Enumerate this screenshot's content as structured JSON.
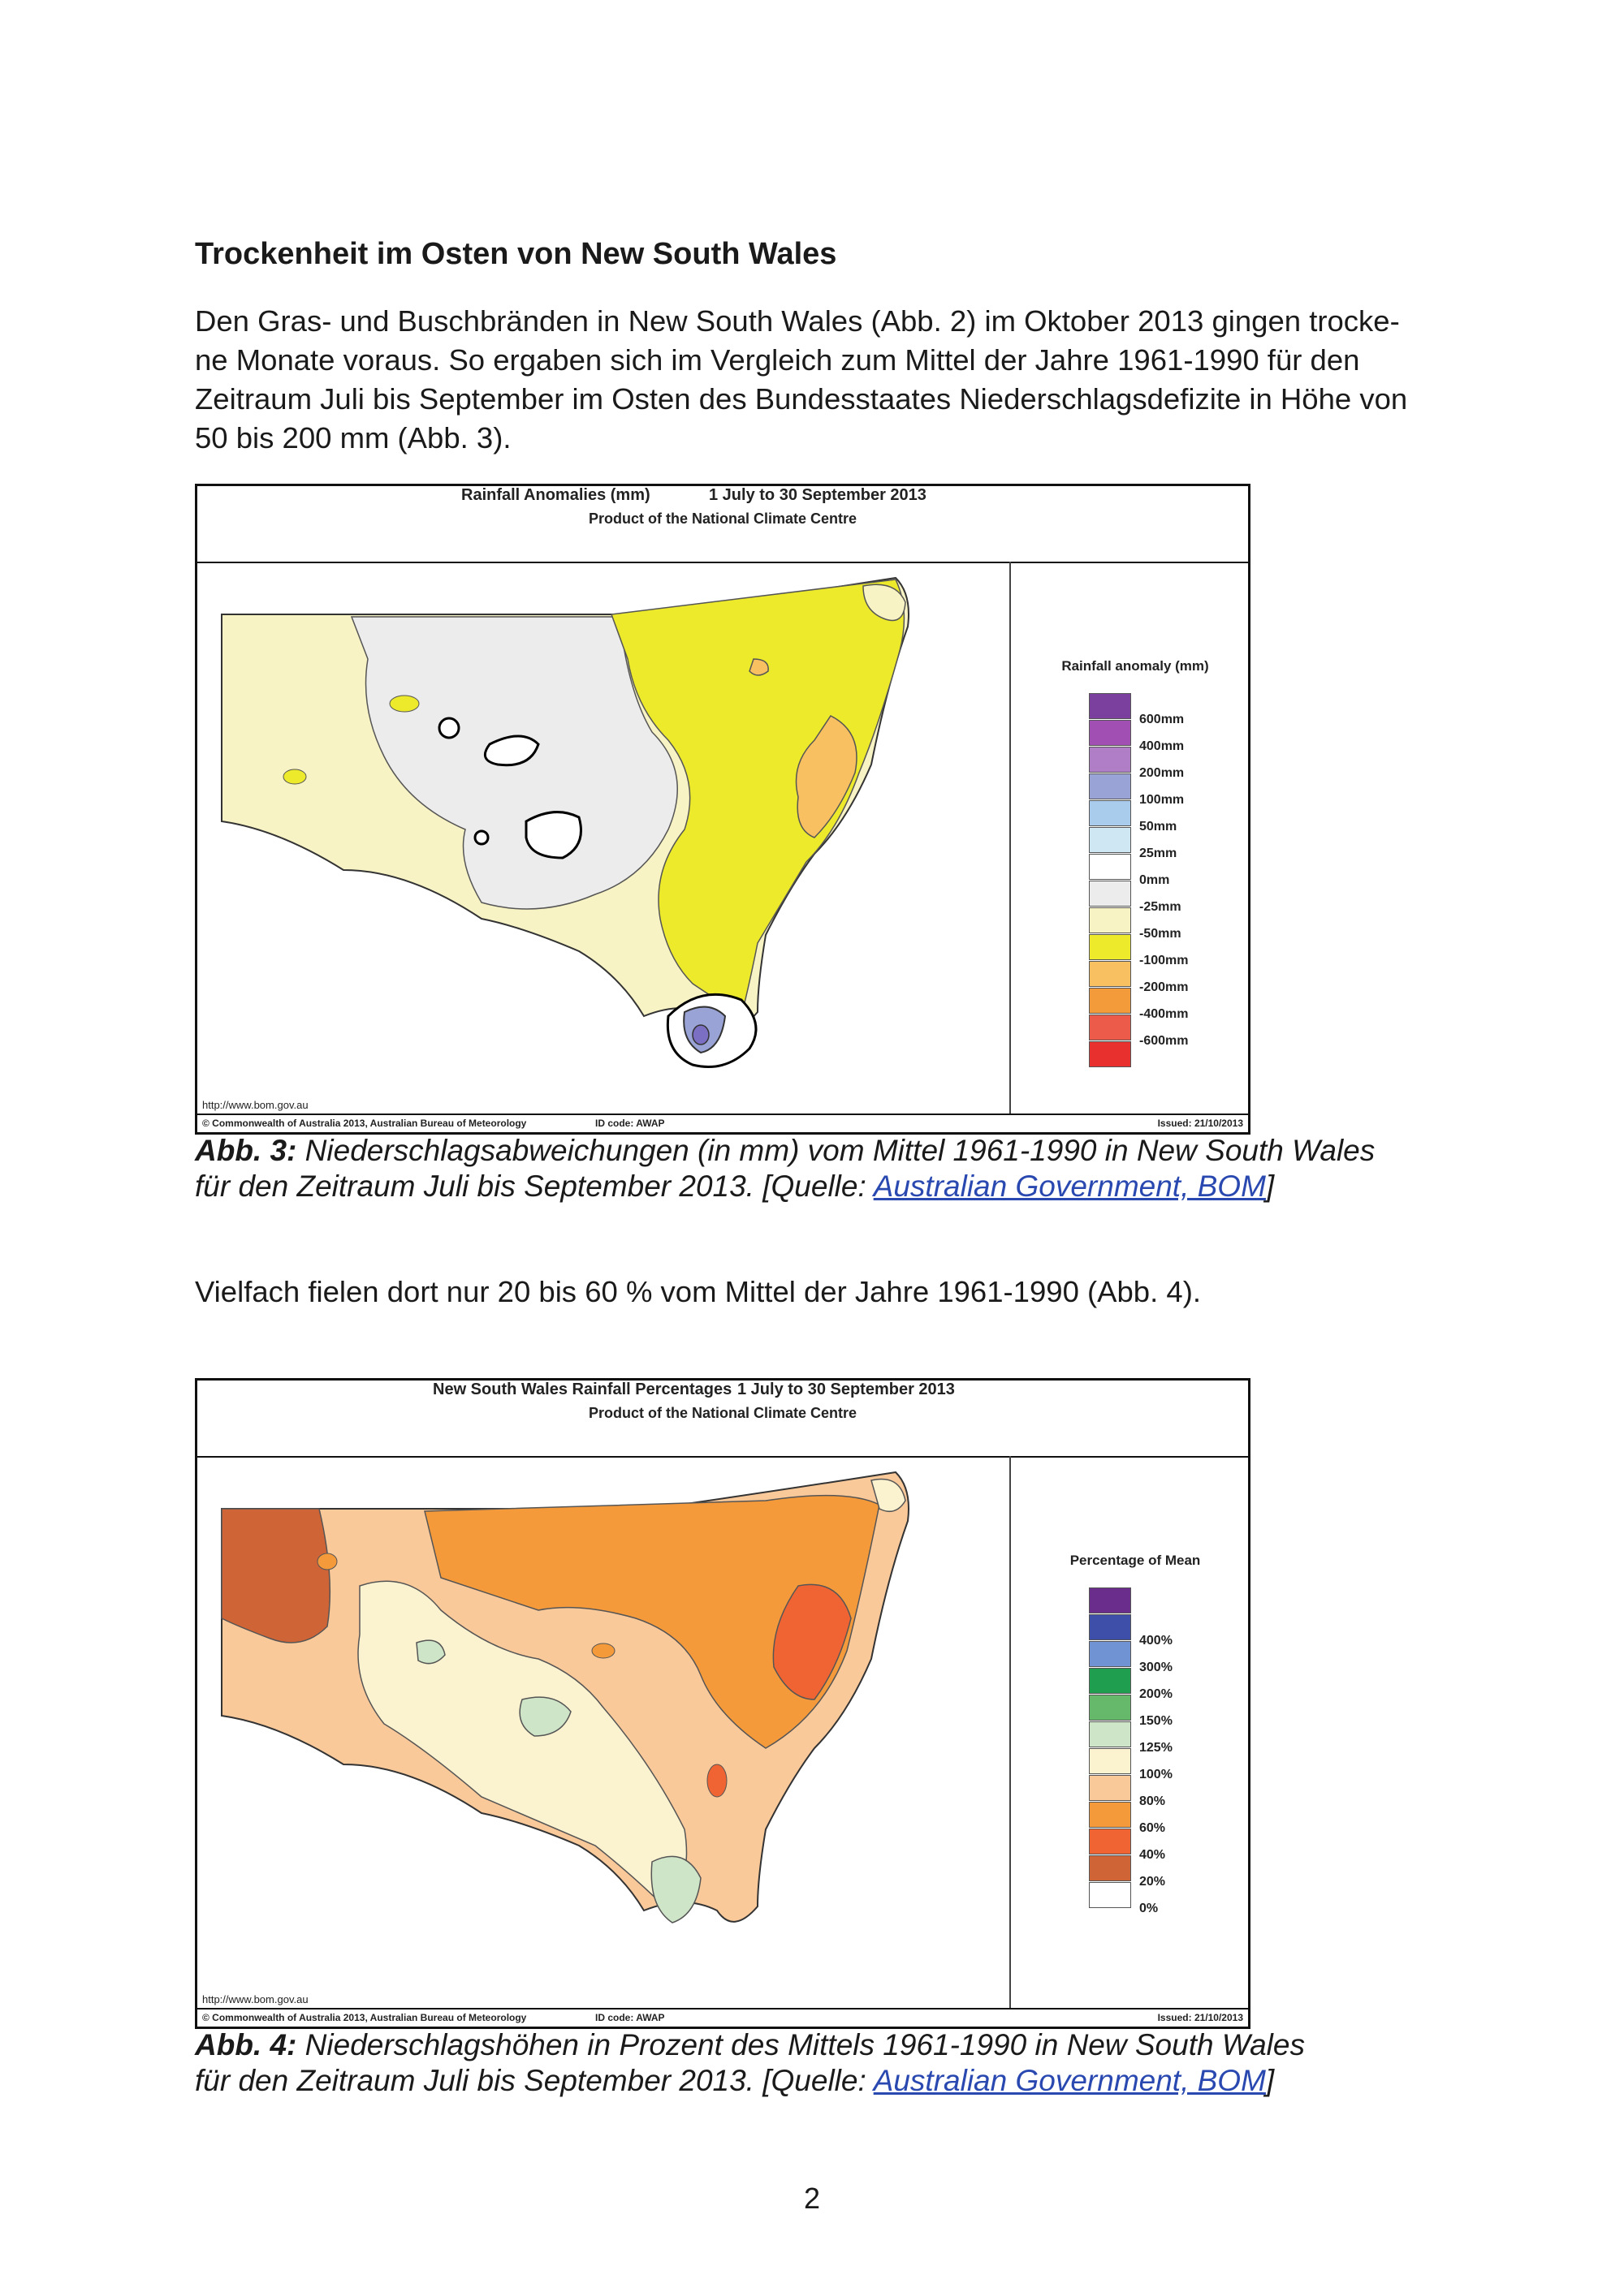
{
  "heading": "Trockenheit im Osten von New South Wales",
  "intro_lines": [
    "Den Gras- und Buschbränden in New South Wales (Abb. 2) im Oktober 2013 gingen trocke-",
    "ne Monate voraus. So ergaben sich im Vergleich zum Mittel der Jahre 1961-1990 für den",
    "Zeitraum Juli bis September im Osten des Bundesstaates Niederschlagsdefizite in Höhe von",
    "50 bis 200 mm (Abb. 3)."
  ],
  "fig3": {
    "title_left": "Rainfall Anomalies (mm)",
    "title_right": "1 July to 30 September 2013",
    "subtitle": "Product of the National Climate Centre",
    "url": "http://www.bom.gov.au",
    "copyright": "© Commonwealth of Australia 2013, Australian Bureau of Meteorology",
    "id_code": "ID code: AWAP",
    "issued": "Issued: 21/10/2013",
    "legend_title": "Rainfall anomaly (mm)",
    "legend": [
      {
        "label": "600mm",
        "color": "#7b3f9e"
      },
      {
        "label": "400mm",
        "color": "#a24fb3"
      },
      {
        "label": "200mm",
        "color": "#b07ec6"
      },
      {
        "label": "100mm",
        "color": "#9aa3d6"
      },
      {
        "label": "50mm",
        "color": "#a9cbec"
      },
      {
        "label": "25mm",
        "color": "#cfe6f3"
      },
      {
        "label": "0mm",
        "color": "#ffffff"
      },
      {
        "label": "-25mm",
        "color": "#ececec"
      },
      {
        "label": "-50mm",
        "color": "#f8f3c4"
      },
      {
        "label": "-100mm",
        "color": "#ecea2a"
      },
      {
        "label": "-200mm",
        "color": "#f8c060"
      },
      {
        "label": "-400mm",
        "color": "#f39a3a"
      },
      {
        "label": "-600mm",
        "color": "#ec5a4a"
      },
      {
        "label": "",
        "color": "#e8302e"
      }
    ],
    "map_colors": {
      "base": "#f8f3c4",
      "grey": "#ececec",
      "yellow": "#ecea2a",
      "orange": "#f8c060",
      "blue": "#9aa3d6",
      "purple": "#7b6fc4"
    }
  },
  "caption3": {
    "label": "Abb. 3:",
    "text1": " Niederschlagsabweichungen (in mm) vom Mittel 1961-1990 in New South Wales",
    "text2": " für den Zeitraum Juli bis September 2013. [Quelle: ",
    "link": "Australian Government, BOM",
    "close": "]"
  },
  "middle_text": "Vielfach fielen dort nur 20 bis 60 % vom Mittel der Jahre 1961-1990 (Abb. 4).",
  "fig4": {
    "title_left": "New South Wales Rainfall Percentages",
    "title_right": "1 July to 30 September 2013",
    "subtitle": "Product of the National Climate Centre",
    "url": "http://www.bom.gov.au",
    "copyright": "© Commonwealth of Australia 2013, Australian Bureau of Meteorology",
    "id_code": "ID code: AWAP",
    "issued": "Issued: 21/10/2013",
    "legend_title": "Percentage of Mean",
    "legend": [
      {
        "label": "",
        "color": "#6a2d8c"
      },
      {
        "label": "400%",
        "color": "#3d4fa8"
      },
      {
        "label": "300%",
        "color": "#6f93d3"
      },
      {
        "label": "200%",
        "color": "#1e9e4e"
      },
      {
        "label": "150%",
        "color": "#66b96a"
      },
      {
        "label": "125%",
        "color": "#cfe5c8"
      },
      {
        "label": "100%",
        "color": "#fbf3d0"
      },
      {
        "label": "80%",
        "color": "#fac99a"
      },
      {
        "label": "60%",
        "color": "#f59a3a"
      },
      {
        "label": "40%",
        "color": "#ef6432"
      },
      {
        "label": "20%",
        "color": "#cf6436"
      },
      {
        "label": "0%",
        "color": "#ffffff"
      }
    ],
    "map_colors": {
      "base": "#fac99a",
      "light": "#fbf3d0",
      "orange": "#f59a3a",
      "red": "#ef6432",
      "brown": "#cf6436",
      "green": "#cfe5c8"
    }
  },
  "caption4": {
    "label": "Abb. 4:",
    "text1": " Niederschlagshöhen in Prozent des Mittels 1961-1990 in New South Wales",
    "text2": "für den Zeitraum Juli bis September 2013. [Quelle: ",
    "link": "Australian Government, BOM",
    "close": "]"
  },
  "page_number": "2"
}
